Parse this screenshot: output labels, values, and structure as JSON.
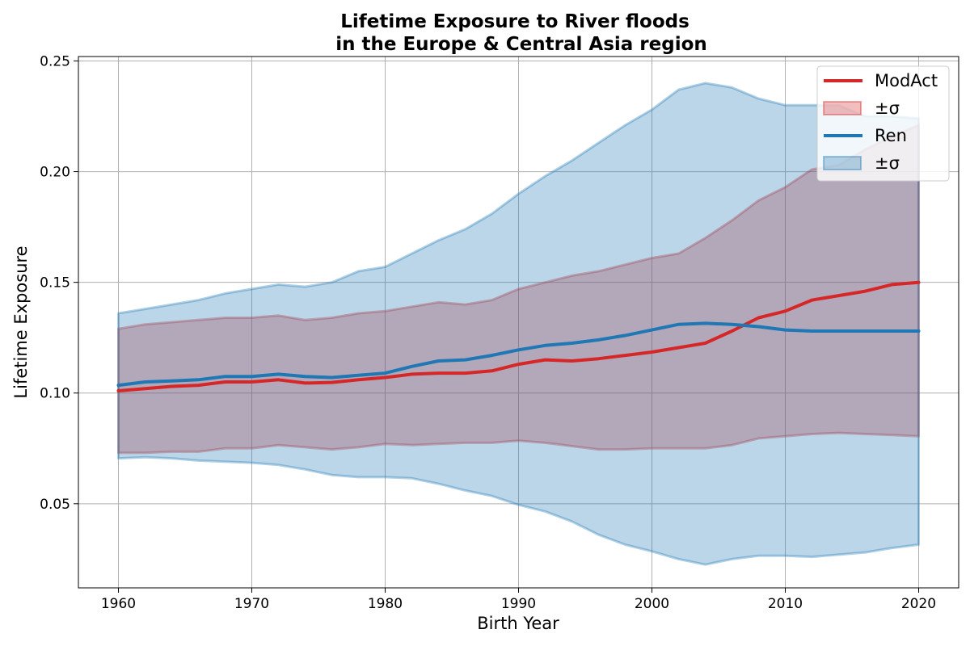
{
  "chart_data": {
    "type": "line",
    "title": "Lifetime Exposure to River floods",
    "subtitle": "in the Europe & Central Asia region",
    "xlabel": "Birth Year",
    "ylabel": "Lifetime Exposure",
    "xlim": [
      1957,
      2023
    ],
    "ylim": [
      0.012,
      0.252
    ],
    "xticks": [
      1960,
      1970,
      1980,
      1990,
      2000,
      2010,
      2020
    ],
    "xtick_labels": [
      "1960",
      "1970",
      "1980",
      "1990",
      "2000",
      "2010",
      "2020"
    ],
    "yticks": [
      0.05,
      0.1,
      0.15,
      0.2,
      0.25
    ],
    "ytick_labels": [
      "0.05",
      "0.10",
      "0.15",
      "0.20",
      "0.25"
    ],
    "grid": true,
    "legend_position": "top-right",
    "x": [
      1960,
      1962,
      1964,
      1966,
      1968,
      1970,
      1972,
      1974,
      1976,
      1978,
      1980,
      1982,
      1984,
      1986,
      1988,
      1990,
      1992,
      1994,
      1996,
      1998,
      2000,
      2002,
      2004,
      2006,
      2008,
      2010,
      2012,
      2014,
      2016,
      2018,
      2020
    ],
    "series": [
      {
        "name": "ModAct",
        "color": "#d62728",
        "band_label": "±σ",
        "values": [
          0.101,
          0.102,
          0.103,
          0.1035,
          0.105,
          0.105,
          0.106,
          0.1045,
          0.1048,
          0.106,
          0.107,
          0.1085,
          0.109,
          0.109,
          0.11,
          0.113,
          0.115,
          0.1145,
          0.1155,
          0.117,
          0.1185,
          0.1205,
          0.1225,
          0.128,
          0.134,
          0.137,
          0.142,
          0.144,
          0.146,
          0.149,
          0.15
        ],
        "upper": [
          0.129,
          0.131,
          0.132,
          0.133,
          0.134,
          0.134,
          0.135,
          0.133,
          0.134,
          0.136,
          0.137,
          0.139,
          0.141,
          0.14,
          0.142,
          0.147,
          0.15,
          0.153,
          0.155,
          0.158,
          0.161,
          0.163,
          0.17,
          0.178,
          0.187,
          0.193,
          0.201,
          0.203,
          0.21,
          0.216,
          0.221
        ],
        "lower": [
          0.073,
          0.073,
          0.0735,
          0.0735,
          0.075,
          0.075,
          0.0765,
          0.0755,
          0.0745,
          0.0755,
          0.077,
          0.0765,
          0.077,
          0.0775,
          0.0775,
          0.0785,
          0.0775,
          0.076,
          0.0745,
          0.0745,
          0.075,
          0.075,
          0.075,
          0.0765,
          0.0795,
          0.0805,
          0.0815,
          0.082,
          0.0815,
          0.081,
          0.0805
        ]
      },
      {
        "name": "Ren",
        "color": "#1f77b4",
        "band_label": "±σ",
        "values": [
          0.1035,
          0.105,
          0.1055,
          0.106,
          0.1075,
          0.1075,
          0.1085,
          0.1075,
          0.107,
          0.108,
          0.109,
          0.112,
          0.1145,
          0.115,
          0.117,
          0.1195,
          0.1215,
          0.1225,
          0.124,
          0.126,
          0.1285,
          0.131,
          0.1315,
          0.131,
          0.13,
          0.1285,
          0.128,
          0.128,
          0.128,
          0.128,
          0.128
        ],
        "upper": [
          0.136,
          0.138,
          0.14,
          0.142,
          0.145,
          0.147,
          0.149,
          0.148,
          0.15,
          0.155,
          0.157,
          0.163,
          0.169,
          0.174,
          0.181,
          0.19,
          0.198,
          0.205,
          0.213,
          0.221,
          0.228,
          0.237,
          0.24,
          0.238,
          0.233,
          0.23,
          0.23,
          0.23,
          0.225,
          0.225,
          0.224
        ],
        "lower": [
          0.0705,
          0.071,
          0.0705,
          0.0695,
          0.069,
          0.0685,
          0.0675,
          0.0655,
          0.063,
          0.062,
          0.062,
          0.0615,
          0.059,
          0.056,
          0.0535,
          0.0495,
          0.0465,
          0.042,
          0.036,
          0.0315,
          0.0285,
          0.025,
          0.0225,
          0.025,
          0.0265,
          0.0265,
          0.026,
          0.027,
          0.028,
          0.03,
          0.0315
        ]
      }
    ]
  }
}
